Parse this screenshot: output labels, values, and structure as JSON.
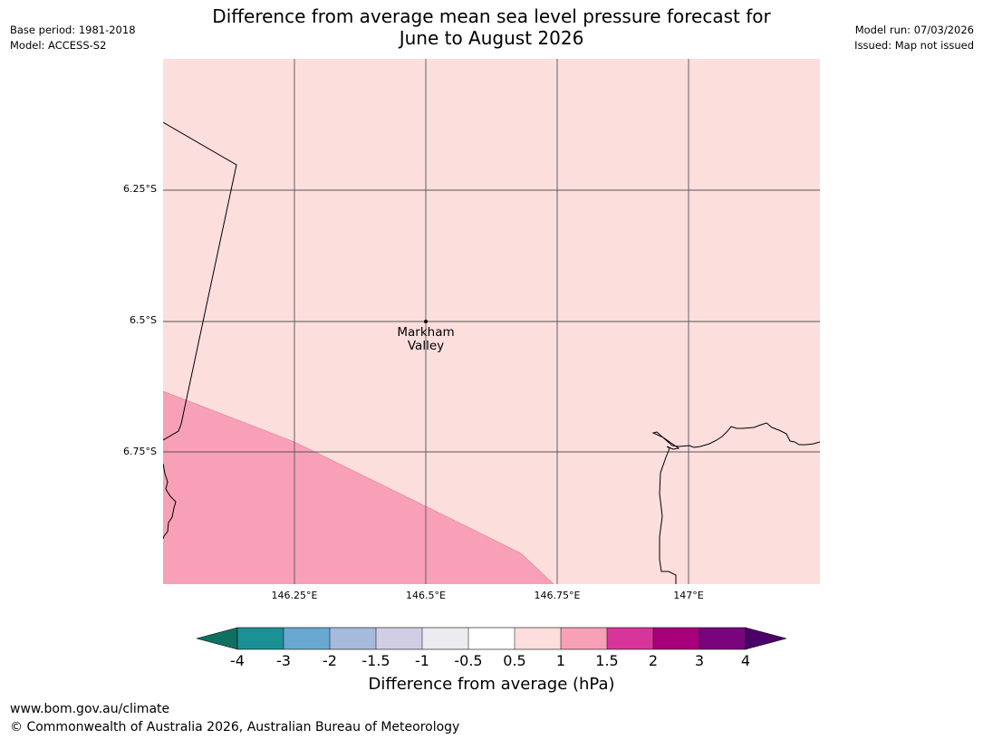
{
  "header": {
    "base_period": "Base period: 1981-2018",
    "model": "Model: ACCESS-S2",
    "title_line1": "Difference from average mean sea level pressure forecast for",
    "title_line2": "June to August 2026",
    "model_run": "Model run: 07/03/2026",
    "issued": "Issued: Map not issued"
  },
  "map": {
    "latitude_labels": [
      "6.25°S",
      "6.5°S",
      "6.75°S"
    ],
    "longitude_labels": [
      "146.25°E",
      "146.5°E",
      "146.75°E",
      "147°E"
    ],
    "place": {
      "name_line1": "Markham",
      "name_line2": "Valley"
    },
    "colors": {
      "band_0_5_to_1": "#fcdedd",
      "band_1_to_1_5": "#f8a0b8",
      "coastline": "#000000",
      "gridline": "#555555"
    }
  },
  "colorbar": {
    "ticks": [
      "-4",
      "-3",
      "-2",
      "-1.5",
      "-1",
      "-0.5",
      "0.5",
      "1",
      "1.5",
      "2",
      "3",
      "4"
    ],
    "colors": [
      "#0e7060",
      "#1b9196",
      "#69a9d1",
      "#a6bbdc",
      "#d0cde5",
      "#ecebf0",
      "#ffffff",
      "#fcdedd",
      "#f8a0b8",
      "#d8359a",
      "#a8007a",
      "#7a047e",
      "#4a0068"
    ],
    "label": "Difference from average (hPa)"
  },
  "footer": {
    "url": "www.bom.gov.au/climate",
    "copyright": "© Commonwealth of Australia 2026, Australian Bureau of Meteorology"
  }
}
